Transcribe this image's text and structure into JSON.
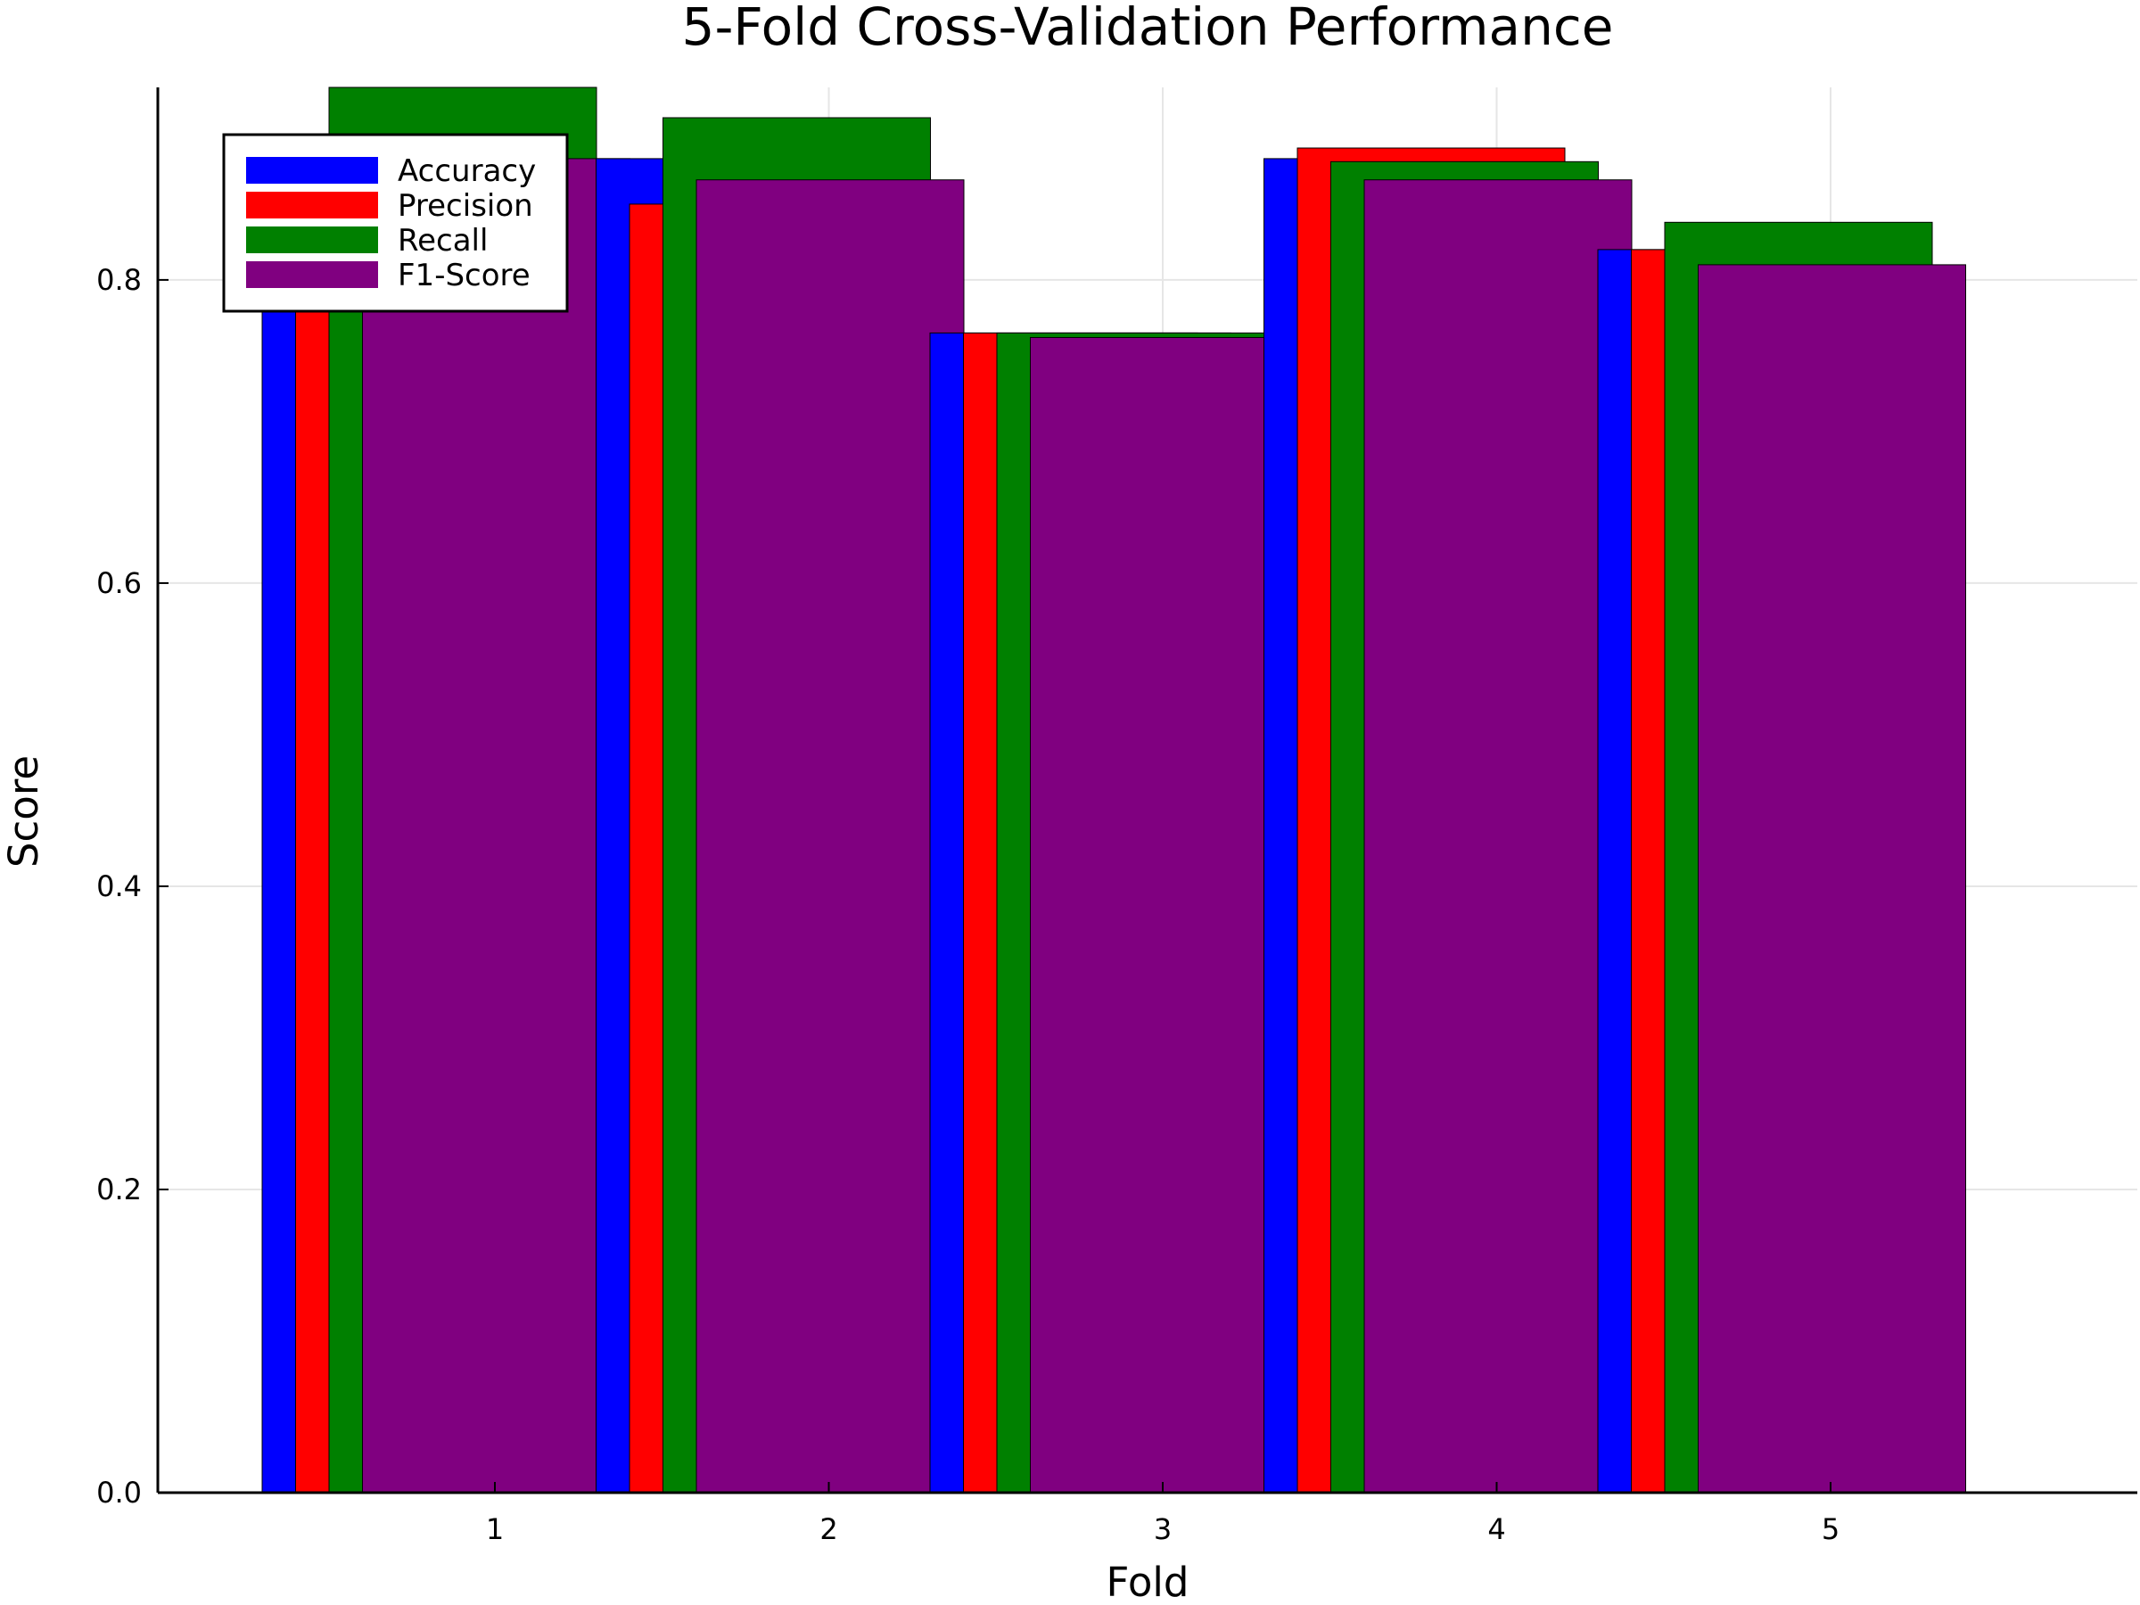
{
  "chart_data": {
    "type": "bar",
    "title": "5-Fold Cross-Validation Performance",
    "xlabel": "Fold",
    "ylabel": "Score",
    "categories": [
      "1",
      "2",
      "3",
      "4",
      "5"
    ],
    "x_ticks": [
      "1",
      "2",
      "3",
      "4",
      "5"
    ],
    "y_ticks": [
      "0.0",
      "0.2",
      "0.4",
      "0.6",
      "0.8"
    ],
    "ylim": [
      0,
      0.927
    ],
    "grid": true,
    "legend_position": "top-left",
    "series": [
      {
        "name": "Accuracy",
        "color": "#0000ff",
        "values": [
          0.88,
          0.88,
          0.765,
          0.88,
          0.82
        ]
      },
      {
        "name": "Precision",
        "color": "#ff0000",
        "values": [
          0.85,
          0.85,
          0.765,
          0.887,
          0.82
        ]
      },
      {
        "name": "Recall",
        "color": "#008000",
        "values": [
          0.927,
          0.907,
          0.765,
          0.878,
          0.838
        ]
      },
      {
        "name": "F1-Score",
        "color": "#800080",
        "values": [
          0.88,
          0.866,
          0.762,
          0.866,
          0.81
        ]
      }
    ]
  }
}
